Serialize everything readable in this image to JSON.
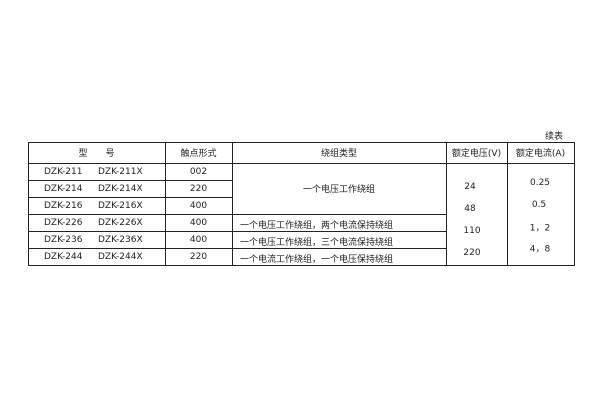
{
  "caption": "续表",
  "headers": [
    "型　　号",
    "触点形式",
    "绕组类型",
    "额定电压(V)",
    "额定电流(A)"
  ],
  "rows": [
    {
      "model": "DZK-211",
      "model_x": "DZK-211X",
      "contact": "002"
    },
    {
      "model": "DZK-214",
      "model_x": "DZK-214X",
      "contact": "220"
    },
    {
      "model": "DZK-216",
      "model_x": "DZK-216X",
      "contact": "400"
    },
    {
      "model": "DZK-226",
      "model_x": "DZK-226X",
      "contact": "400"
    },
    {
      "model": "DZK-236",
      "model_x": "DZK-236X",
      "contact": "400"
    },
    {
      "model": "DZK-244",
      "model_x": "DZK-244X",
      "contact": "220"
    }
  ],
  "winding": [
    "一个电压工作绕组",
    "一个电压工作绕组，两个电流保持绕组",
    "一个电压工作绕组，三个电流保持绕组",
    "一个电流工作绕组，一个电压保持绕组"
  ],
  "voltages": [
    "24",
    "48",
    "110",
    "220"
  ],
  "currents": [
    "0.25",
    "0.5",
    "1，2",
    "4，8"
  ]
}
